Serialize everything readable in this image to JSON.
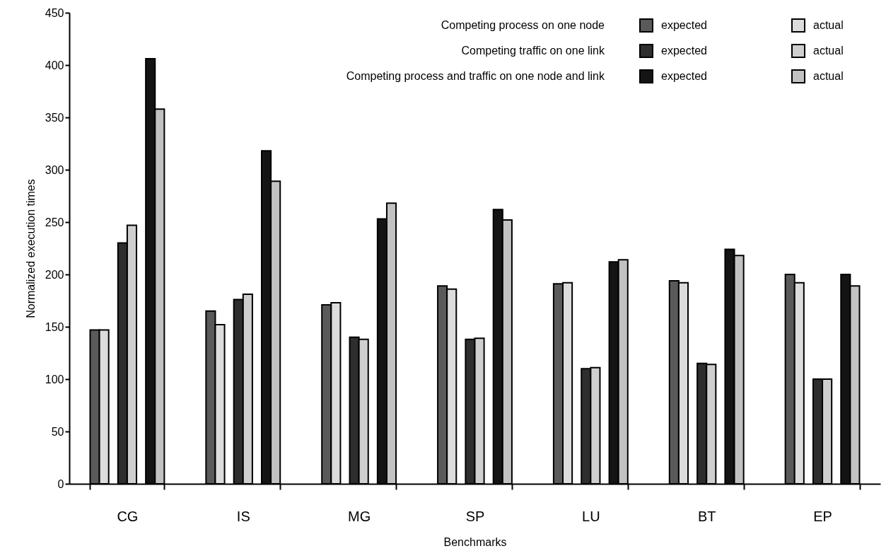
{
  "chart_data": {
    "type": "bar",
    "xlabel": "Benchmarks",
    "ylabel": "Normalized execution times",
    "categories": [
      "CG",
      "IS",
      "MG",
      "SP",
      "LU",
      "BT",
      "EP"
    ],
    "series": [
      {
        "name": "expected",
        "color": "#5a5a5a",
        "values": [
          147,
          165,
          171,
          189,
          191,
          194,
          200
        ]
      },
      {
        "name": "actual",
        "color": "#dcdcdc",
        "values": [
          147,
          152,
          173,
          186,
          192,
          192,
          192
        ]
      },
      {
        "name": "expected",
        "color": "#2e2e2e",
        "values": [
          230,
          176,
          140,
          138,
          110,
          115,
          100
        ]
      },
      {
        "name": "actual",
        "color": "#cfcfcf",
        "values": [
          247,
          181,
          138,
          139,
          111,
          114,
          100
        ]
      },
      {
        "name": "expected",
        "color": "#141414",
        "values": [
          406,
          318,
          253,
          262,
          212,
          224,
          200
        ]
      },
      {
        "name": "actual",
        "color": "#c2c2c2",
        "values": [
          358,
          289,
          268,
          252,
          214,
          218,
          189
        ]
      }
    ],
    "annotations": [
      "Competing process on one node",
      "Competing traffic on one link",
      "Competing  process and traffic on one node and link"
    ],
    "ylim": [
      0,
      450
    ],
    "yticks": [
      0,
      50,
      100,
      150,
      200,
      250,
      300,
      350,
      400,
      450
    ],
    "grid": false,
    "legend": "top right"
  }
}
